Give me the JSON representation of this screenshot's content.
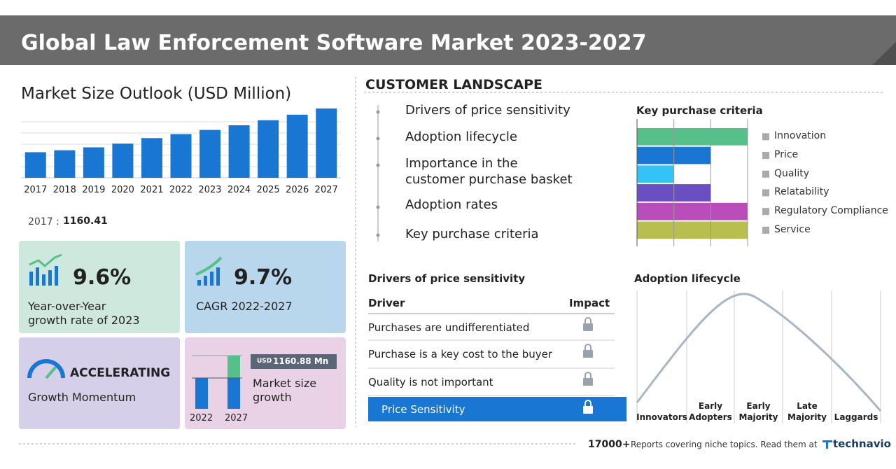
{
  "header": {
    "title": "Global Law Enforcement Software Market 2023-2027"
  },
  "market_size": {
    "title": "Market Size Outlook (USD Million)",
    "chart_data": {
      "type": "bar",
      "categories": [
        "2017",
        "2018",
        "2019",
        "2020",
        "2021",
        "2022",
        "2023",
        "2024",
        "2025",
        "2026",
        "2027"
      ],
      "values": [
        1160.41,
        1250,
        1380,
        1550,
        1800,
        1980,
        2170,
        2380,
        2610,
        2860,
        3141
      ],
      "color": "#1976d2",
      "ylim": [
        0,
        3300
      ]
    },
    "first_label": "2017 :"
  },
  "cards": {
    "yoy": {
      "value": "9.6%",
      "label": "Year-over-Year growth rate of 2023"
    },
    "cagr": {
      "value": "9.7%",
      "label": "CAGR 2022-2027"
    },
    "momentum": {
      "value": "ACCELERATING",
      "label": "Growth Momentum"
    },
    "growth": {
      "currency": "USD",
      "value": "1160.88 Mn",
      "label": "Market size growth",
      "years": [
        "2022",
        "2027"
      ]
    }
  },
  "customer_landscape": {
    "title": "CUSTOMER LANDSCAPE",
    "items": [
      "Drivers of price sensitivity",
      "Adoption lifecycle",
      "Importance in the customer purchase basket",
      "Adoption rates",
      "Key purchase criteria"
    ]
  },
  "key_purchase_criteria": {
    "title": "Key purchase criteria",
    "chart_data": {
      "type": "hbar",
      "categories": [
        "Innovation",
        "Price",
        "Quality",
        "Relatability",
        "Regulatory Compliance",
        "Service"
      ],
      "values": [
        3,
        2,
        1,
        2,
        3,
        3
      ],
      "colors": [
        "#55c08a",
        "#1976d2",
        "#33c4f5",
        "#6a4fc2",
        "#b94db9",
        "#b8bf4e"
      ],
      "xlim": [
        0,
        3
      ],
      "xticks": [
        0,
        1,
        2,
        3
      ],
      "grid": true
    }
  },
  "drivers": {
    "title": "Drivers of price sensitivity",
    "headers": [
      "Driver",
      "Impact"
    ],
    "rows": [
      "Purchases are undifferentiated",
      "Purchase is a key cost to the buyer",
      "Quality is not important",
      "Price Sensitivity"
    ]
  },
  "adoption": {
    "title": "Adoption lifecycle",
    "stages": [
      "Innovators",
      "Early Adopters",
      "Early Majority",
      "Late Majority",
      "Laggards"
    ]
  },
  "footer": {
    "count": "17000+",
    "text": "Reports covering niche topics. Read them at",
    "brand": "technavio"
  }
}
